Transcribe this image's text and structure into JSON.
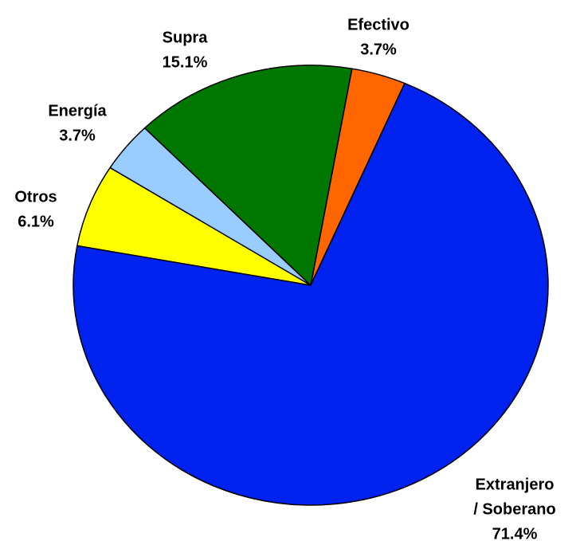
{
  "chart_data": {
    "type": "pie",
    "title": "",
    "slices": [
      {
        "name": "Extranjero / Soberano",
        "label_lines": [
          "Extranjero",
          "/ Soberano"
        ],
        "value": 71.4,
        "value_label": "71.4%",
        "color": "#0022ee"
      },
      {
        "name": "Otros",
        "label_lines": [
          "Otros"
        ],
        "value": 6.1,
        "value_label": "6.1%",
        "color": "#ffff00"
      },
      {
        "name": "Energía",
        "label_lines": [
          "Energía"
        ],
        "value": 3.7,
        "value_label": "3.7%",
        "color": "#99ccff"
      },
      {
        "name": "Supra",
        "label_lines": [
          "Supra"
        ],
        "value": 15.1,
        "value_label": "15.1%",
        "color": "#007700"
      },
      {
        "name": "Efectivo",
        "label_lines": [
          "Efectivo"
        ],
        "value": 3.7,
        "value_label": "3.7%",
        "color": "#ff6600"
      }
    ],
    "start_slice": "Efectivo",
    "direction": "clockwise"
  }
}
